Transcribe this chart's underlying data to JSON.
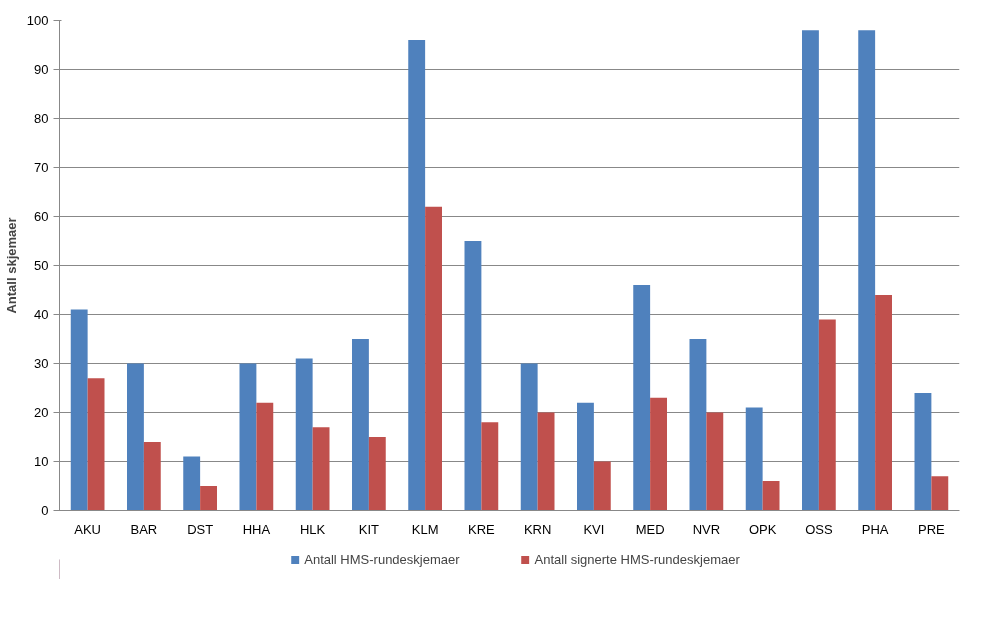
{
  "chart_data": {
    "type": "bar",
    "ylabel": "Antall skjemaer",
    "categories": [
      "AKU",
      "BAR",
      "DST",
      "HHA",
      "HLK",
      "KIT",
      "KLM",
      "KRE",
      "KRN",
      "KVI",
      "MED",
      "NVR",
      "OPK",
      "OSS",
      "PHA",
      "PRE"
    ],
    "series": [
      {
        "name": "Antall HMS-rundeskjemaer",
        "color": "#4f81bd",
        "values": [
          41,
          30,
          11,
          30,
          31,
          35,
          96,
          55,
          30,
          22,
          46,
          35,
          21,
          98,
          98,
          24
        ]
      },
      {
        "name": "Antall signerte HMS-rundeskjemaer",
        "color": "#c0504d",
        "values": [
          27,
          14,
          5,
          22,
          17,
          15,
          62,
          18,
          20,
          10,
          23,
          20,
          6,
          39,
          44,
          7
        ]
      }
    ],
    "ylim": [
      0,
      100
    ],
    "yticks": [
      0,
      10,
      20,
      30,
      40,
      50,
      60,
      70,
      80,
      90,
      100
    ],
    "grid": "y",
    "legend": "bottom"
  }
}
